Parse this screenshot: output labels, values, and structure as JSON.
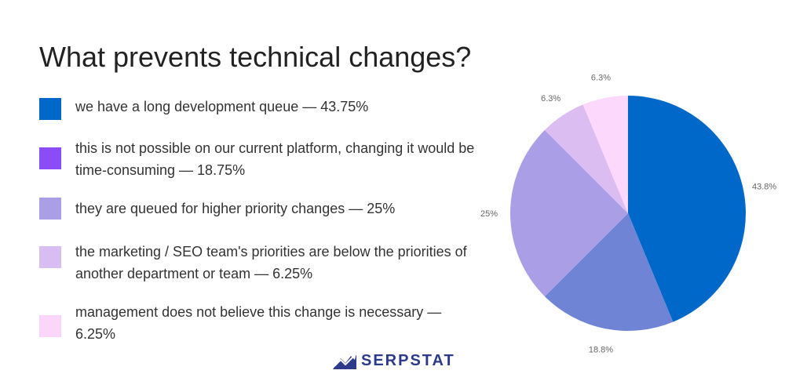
{
  "chart_data": {
    "type": "pie",
    "title": "What prevents technical changes?",
    "legend": [
      {
        "text": "we have a long development queue — 43.75%",
        "color": "#0068c9"
      },
      {
        "text": "this is not possible on our current platform, changing it would be time-consuming — 18.75%",
        "color": "#8b4cf6"
      },
      {
        "text": "they are queued for higher priority changes — 25%",
        "color": "#aa9ee6"
      },
      {
        "text": "the marketing / SEO team's priorities are below the priorities of another department or team — 6.25%",
        "color": "#d8bdf2"
      },
      {
        "text": "management does not believe this change is necessary — 6.25%",
        "color": "#fbd6fb"
      }
    ],
    "slices": [
      {
        "value": 43.75,
        "label": "43.8%",
        "color": "#0068c9"
      },
      {
        "value": 18.75,
        "label": "18.8%",
        "color": "#7084d6"
      },
      {
        "value": 25,
        "label": "25%",
        "color": "#aa9ee6"
      },
      {
        "value": 6.25,
        "label": "6.3%",
        "color": "#dbbdf2"
      },
      {
        "value": 6.25,
        "label": "6.3%",
        "color": "#fdd8fd"
      }
    ]
  },
  "brand": {
    "name": "SERPSTAT",
    "color": "#2b3a8a",
    "icon": "serpstat-logo-icon"
  }
}
